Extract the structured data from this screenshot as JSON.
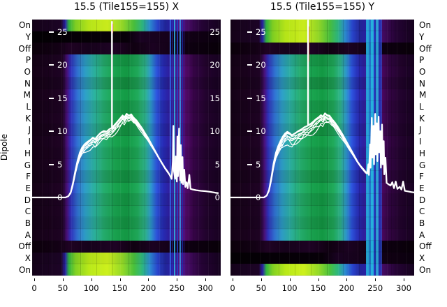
{
  "ylabel": "Dipole",
  "titles": {
    "left": "15.5 (Tile155=155) X",
    "right": "15.5 (Tile155=155) Y"
  },
  "dipole_labels": [
    "On",
    "Y",
    "Off",
    "P",
    "O",
    "N",
    "M",
    "L",
    "K",
    "J",
    "I",
    "H",
    "G",
    "F",
    "E",
    "D",
    "C",
    "B",
    "A",
    "Off",
    "X",
    "On"
  ],
  "value_ticks": [
    25,
    20,
    15,
    10,
    5,
    0
  ],
  "x_ticks": [
    0,
    50,
    100,
    150,
    200,
    250,
    300
  ],
  "colors": {
    "curve": "#ffffff",
    "marker": "#dd2200",
    "background": "#ffffff",
    "gradients": {
      "sig": [
        [
          0,
          "#130114"
        ],
        [
          16,
          "#1d0322"
        ],
        [
          18.5,
          "#461073"
        ],
        [
          20.5,
          "#2d2fb4"
        ],
        [
          24,
          "#2e6ac6"
        ],
        [
          28,
          "#2b95bd"
        ],
        [
          33,
          "#29a795"
        ],
        [
          38,
          "#23a468"
        ],
        [
          44,
          "#189a4b"
        ],
        [
          50,
          "#129140"
        ],
        [
          56,
          "#1ea055"
        ],
        [
          60,
          "#2caa86"
        ],
        [
          63,
          "#2b90c2"
        ],
        [
          66,
          "#2b50d2"
        ],
        [
          69.5,
          "#2429ac"
        ],
        [
          72.5,
          "#2b1e98"
        ],
        [
          75.5,
          "#3e1d90"
        ],
        [
          78.5,
          "#5a1078"
        ],
        [
          82,
          "#4a085e"
        ],
        [
          86,
          "#320442"
        ],
        [
          92,
          "#21032c"
        ],
        [
          100,
          "#170120"
        ]
      ],
      "bright": [
        [
          0,
          "#140218"
        ],
        [
          15.5,
          "#1c0426"
        ],
        [
          17.5,
          "#2b22aa"
        ],
        [
          19.5,
          "#30b03e"
        ],
        [
          23,
          "#7ecd22"
        ],
        [
          30,
          "#b5e418"
        ],
        [
          40,
          "#c9eb1c"
        ],
        [
          48,
          "#90d527"
        ],
        [
          54,
          "#48bd3b"
        ],
        [
          58.5,
          "#2cb37e"
        ],
        [
          62.5,
          "#2b87cd"
        ],
        [
          66.5,
          "#2843c9"
        ],
        [
          70.5,
          "#202597"
        ],
        [
          74.5,
          "#2a1da0"
        ],
        [
          78,
          "#541486"
        ],
        [
          83,
          "#430a60"
        ],
        [
          90,
          "#240334"
        ],
        [
          100,
          "#15021e"
        ]
      ],
      "off": [
        [
          0,
          "#0a0009"
        ],
        [
          14,
          "#130115"
        ],
        [
          20,
          "#1f0323"
        ],
        [
          30,
          "#16021b"
        ],
        [
          44,
          "#1e0324"
        ],
        [
          54,
          "#100111"
        ],
        [
          64,
          "#1b0221"
        ],
        [
          74,
          "#130117"
        ],
        [
          84,
          "#0d0010"
        ],
        [
          100,
          "#080008"
        ]
      ],
      "offdark": [
        [
          0,
          "#030004"
        ],
        [
          50,
          "#070008"
        ],
        [
          58,
          "#1a0222"
        ],
        [
          75,
          "#150119"
        ],
        [
          100,
          "#0a000d"
        ]
      ]
    }
  },
  "row_brightness": [
    1,
    1,
    1,
    0.96,
    1.05,
    0.9,
    1.07,
    0.97,
    1.02,
    0.93,
    1.06,
    0.98,
    1.03,
    0.92,
    1.06,
    0.96,
    1.01,
    0.94,
    1.04,
    1,
    0.97,
    1.02
  ],
  "chart_data": [
    {
      "type": "heatmap",
      "title": "15.5 (Tile155=155) X",
      "xlabel": "",
      "ylabel": "Dipole",
      "x_range": [
        0,
        327
      ],
      "x_ticks": [
        0,
        50,
        100,
        150,
        200,
        250,
        300
      ],
      "value_axis": {
        "ticks": [
          0,
          5,
          10,
          15,
          20,
          25
        ],
        "range": [
          0,
          27
        ],
        "tick_side": "inside-left",
        "right_tick_labels": [
          25,
          20,
          15,
          10,
          5,
          0
        ]
      },
      "row_labels": [
        "On",
        "Y",
        "Off",
        "P",
        "O",
        "N",
        "M",
        "L",
        "K",
        "J",
        "I",
        "H",
        "G",
        "F",
        "E",
        "D",
        "C",
        "B",
        "A",
        "Off",
        "X",
        "On"
      ],
      "row_kinds": [
        "bright",
        "offdark",
        "off",
        "sig",
        "sig",
        "sig",
        "sig",
        "sig",
        "sig",
        "sig",
        "sig",
        "sig",
        "sig",
        "sig",
        "sig",
        "sig",
        "sig",
        "sig",
        "sig",
        "off",
        "bright",
        "bright"
      ],
      "spread_max": 1.7,
      "line_series": {
        "name": "overlaid dipole spectra (white)",
        "points": [
          [
            -3.5,
            0
          ],
          [
            55,
            0
          ],
          [
            60,
            0.2
          ],
          [
            64,
            0.8
          ],
          [
            68,
            2.2
          ],
          [
            72,
            4.0
          ],
          [
            76,
            5.6
          ],
          [
            80,
            6.8
          ],
          [
            84,
            7.6
          ],
          [
            88,
            8.1
          ],
          [
            93,
            8.5
          ],
          [
            98,
            8.8
          ],
          [
            103,
            9.2
          ],
          [
            107,
            9.0
          ],
          [
            112,
            9.5
          ],
          [
            117,
            9.9
          ],
          [
            122,
            10.1
          ],
          [
            127,
            10.0
          ],
          [
            132,
            10.4
          ],
          [
            136,
            10.6
          ],
          [
            141,
            11.1
          ],
          [
            146,
            11.6
          ],
          [
            151,
            12.1
          ],
          [
            155,
            12.5
          ],
          [
            158,
            12.2
          ],
          [
            162,
            12.7
          ],
          [
            166,
            12.4
          ],
          [
            170,
            12.6
          ],
          [
            174,
            12.1
          ],
          [
            179,
            11.7
          ],
          [
            184,
            11.1
          ],
          [
            189,
            10.5
          ],
          [
            194,
            9.8
          ],
          [
            199,
            9.1
          ],
          [
            204,
            8.3
          ],
          [
            209,
            7.5
          ],
          [
            214,
            6.7
          ],
          [
            219,
            5.9
          ],
          [
            224,
            5.2
          ],
          [
            229,
            4.5
          ],
          [
            234,
            3.9
          ],
          [
            238,
            3.3
          ],
          [
            241,
            2.8
          ],
          [
            243,
            5.5
          ],
          [
            244,
            10.8
          ],
          [
            245,
            4.0
          ],
          [
            247,
            2.8
          ],
          [
            248,
            6.2
          ],
          [
            250,
            2.4
          ],
          [
            251,
            9.2
          ],
          [
            252,
            3.2
          ],
          [
            254,
            10.4
          ],
          [
            255,
            4.2
          ],
          [
            256,
            2.6
          ],
          [
            257,
            7.9
          ],
          [
            258,
            2.2
          ],
          [
            260,
            6.1
          ],
          [
            261,
            2.0
          ],
          [
            263,
            4.2
          ],
          [
            265,
            1.6
          ],
          [
            267,
            2.3
          ],
          [
            269,
            1.4
          ],
          [
            272,
            3.4
          ],
          [
            274,
            1.3
          ],
          [
            278,
            1.2
          ],
          [
            284,
            1.1
          ],
          [
            292,
            1.0
          ],
          [
            300,
            0.95
          ],
          [
            308,
            0.85
          ],
          [
            318,
            0.7
          ],
          [
            323,
            0.65
          ]
        ]
      },
      "spike": {
        "x": 136.3,
        "base": 10.6,
        "peak": 26.5
      },
      "red_marker": {
        "x": 137.6,
        "v1": 24.8,
        "v2": 26.2
      },
      "stripes": [
        {
          "x": 237,
          "w": 2,
          "c": "#2f6ae8",
          "o": 0.8
        },
        {
          "x": 241,
          "w": 1.5,
          "c": "#1d3fd0",
          "o": 0.75
        },
        {
          "x": 245.5,
          "w": 2,
          "c": "#2fb6e0",
          "o": 0.85
        },
        {
          "x": 250,
          "w": 1.5,
          "c": "#2347d8",
          "o": 0.8
        },
        {
          "x": 254.5,
          "w": 2,
          "c": "#34a2ec",
          "o": 0.8
        },
        {
          "x": 258.5,
          "w": 1.5,
          "c": "#1d2fb8",
          "o": 0.7
        },
        {
          "x": 262,
          "w": 1,
          "c": "#3e22c8",
          "o": 0.6
        }
      ]
    },
    {
      "type": "heatmap",
      "title": "15.5 (Tile155=155) Y",
      "xlabel": "",
      "ylabel": "Dipole",
      "x_range": [
        0,
        327
      ],
      "x_ticks": [
        0,
        50,
        100,
        150,
        200,
        250,
        300
      ],
      "value_axis": {
        "ticks": [
          0,
          5,
          10,
          15,
          20,
          25
        ],
        "range": [
          0,
          27
        ],
        "tick_side": "inside-left",
        "right_tick_labels": []
      },
      "row_labels": [
        "On",
        "Y",
        "Off",
        "P",
        "O",
        "N",
        "M",
        "L",
        "K",
        "J",
        "I",
        "H",
        "G",
        "F",
        "E",
        "D",
        "C",
        "B",
        "A",
        "Off",
        "X",
        "On"
      ],
      "row_kinds": [
        "bright",
        "bright",
        "off",
        "sig",
        "sig",
        "sig",
        "sig",
        "sig",
        "sig",
        "sig",
        "sig",
        "sig",
        "sig",
        "sig",
        "sig",
        "sig",
        "sig",
        "sig",
        "sig",
        "off",
        "offdark",
        "bright"
      ],
      "spread_max": 2.2,
      "line_series": {
        "name": "overlaid dipole spectra (white)",
        "points": [
          [
            -3.5,
            0
          ],
          [
            55,
            0
          ],
          [
            60,
            0.3
          ],
          [
            64,
            1.2
          ],
          [
            68,
            3.0
          ],
          [
            72,
            5.2
          ],
          [
            76,
            6.8
          ],
          [
            80,
            7.8
          ],
          [
            84,
            8.6
          ],
          [
            88,
            9.3
          ],
          [
            92,
            9.8
          ],
          [
            96,
            10.1
          ],
          [
            100,
            9.9
          ],
          [
            104,
            9.6
          ],
          [
            108,
            9.8
          ],
          [
            112,
            10.0
          ],
          [
            116,
            10.2
          ],
          [
            121,
            10.4
          ],
          [
            126,
            10.7
          ],
          [
            131,
            10.9
          ],
          [
            136,
            11.2
          ],
          [
            141,
            11.6
          ],
          [
            146,
            12.0
          ],
          [
            151,
            12.3
          ],
          [
            155,
            12.6
          ],
          [
            158,
            12.3
          ],
          [
            162,
            12.8
          ],
          [
            166,
            12.5
          ],
          [
            170,
            12.4
          ],
          [
            174,
            11.9
          ],
          [
            179,
            11.4
          ],
          [
            184,
            10.8
          ],
          [
            189,
            10.1
          ],
          [
            194,
            9.4
          ],
          [
            199,
            8.6
          ],
          [
            204,
            7.8
          ],
          [
            209,
            7.0
          ],
          [
            214,
            6.2
          ],
          [
            219,
            5.4
          ],
          [
            224,
            4.8
          ],
          [
            229,
            4.3
          ],
          [
            233,
            3.9
          ],
          [
            236,
            3.6
          ],
          [
            238,
            5.0
          ],
          [
            239,
            3.4
          ],
          [
            241,
            8.0
          ],
          [
            242,
            4.5
          ],
          [
            244,
            12.0
          ],
          [
            245,
            6.0
          ],
          [
            247,
            10.8
          ],
          [
            248,
            5.0
          ],
          [
            250,
            12.6
          ],
          [
            251,
            6.5
          ],
          [
            253,
            11.2
          ],
          [
            254,
            5.5
          ],
          [
            256,
            12.2
          ],
          [
            257,
            6.8
          ],
          [
            259,
            10.0
          ],
          [
            260,
            4.5
          ],
          [
            262,
            11.0
          ],
          [
            263,
            5.0
          ],
          [
            265,
            8.5
          ],
          [
            266,
            3.5
          ],
          [
            268,
            6.0
          ],
          [
            270,
            2.2
          ],
          [
            273,
            2.0
          ],
          [
            277,
            1.8
          ],
          [
            280,
            2.3
          ],
          [
            283,
            1.4
          ],
          [
            286,
            2.4
          ],
          [
            289,
            1.3
          ],
          [
            293,
            1.6
          ],
          [
            296,
            1.2
          ],
          [
            299,
            2.4
          ],
          [
            302,
            1.0
          ],
          [
            308,
            0.9
          ],
          [
            314,
            0.8
          ],
          [
            323,
            0.7
          ]
        ]
      },
      "spike": {
        "x": 132.3,
        "base": 11.0,
        "peak": 26.7
      },
      "red_marker": {
        "x": 133.6,
        "v1": 20.5,
        "v2": 25.8
      },
      "stripes": [
        {
          "x": 234,
          "w": 3.5,
          "c": "#22aede",
          "o": 0.9
        },
        {
          "x": 238.5,
          "w": 3,
          "c": "#1f86d8",
          "o": 0.85
        },
        {
          "x": 243,
          "w": 3.5,
          "c": "#25b8e2",
          "o": 0.95
        },
        {
          "x": 247.5,
          "w": 2.5,
          "c": "#2040cc",
          "o": 0.85
        },
        {
          "x": 251.5,
          "w": 3.5,
          "c": "#27aadc",
          "o": 0.9
        },
        {
          "x": 256,
          "w": 3,
          "c": "#1e38c4",
          "o": 0.8
        },
        {
          "x": 260,
          "w": 2,
          "c": "#2f50d0",
          "o": 0.7
        }
      ]
    }
  ]
}
